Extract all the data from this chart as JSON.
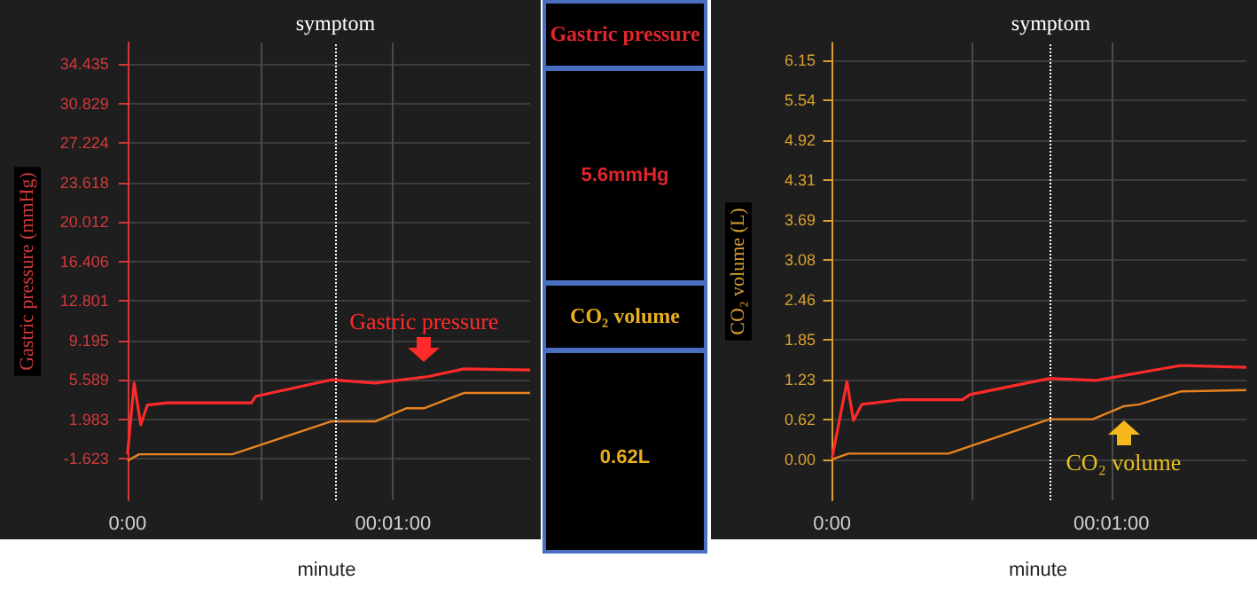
{
  "chart_data": [
    {
      "type": "line",
      "xlabel": "minute",
      "ylabel": "Gastric pressure (mmHg)",
      "grid": true,
      "xlim": [
        -1,
        91
      ],
      "xticks": [
        {
          "value": 0,
          "label": "0:00"
        },
        {
          "value": 30,
          "label": null
        },
        {
          "value": 60,
          "label": "00:01:00"
        }
      ],
      "ylim": [
        -5.4,
        36.4
      ],
      "yticks": [
        -1.623,
        1.983,
        5.589,
        9.195,
        12.801,
        16.406,
        20.012,
        23.618,
        27.224,
        30.829,
        34.435
      ],
      "ref_lines": [
        {
          "axis": "x",
          "value": 47,
          "label": "symptom",
          "color": "#ffffff",
          "line_style": "dotted"
        }
      ],
      "annotations": [
        {
          "text": "Gastric pressure",
          "x": 67,
          "y": 5.9
        }
      ],
      "series": [
        {
          "color": "#ff2a2a",
          "x": [
            0,
            1.5,
            3,
            4.5,
            9,
            28,
            29,
            46,
            56,
            68,
            76,
            91
          ],
          "values": [
            -1.2,
            5.3,
            1.5,
            3.3,
            3.5,
            3.5,
            4.1,
            5.6,
            5.3,
            5.9,
            6.6,
            6.5
          ]
        },
        {
          "color": "#e8831f",
          "x": [
            0,
            2.6,
            23.7,
            46,
            56,
            63,
            67,
            76,
            91
          ],
          "values": [
            -1.8,
            -1.2,
            -1.2,
            1.8,
            1.8,
            3.0,
            3.0,
            4.4,
            4.4
          ]
        }
      ]
    },
    {
      "type": "other",
      "annotations": [
        "Gastric pressure",
        "5.6mmHg",
        "CO₂ volume",
        "0.62L"
      ]
    },
    {
      "type": "line",
      "xlabel": "minute",
      "ylabel": "CO₂ volume (L)",
      "grid": true,
      "xlim": [
        -0.5,
        89
      ],
      "xticks": [
        {
          "value": 0,
          "label": "0:00"
        },
        {
          "value": 30,
          "label": null
        },
        {
          "value": 60,
          "label": "00:01:00"
        }
      ],
      "ylim": [
        -0.63,
        6.43
      ],
      "yticks": [
        {
          "value": 0,
          "label": "0.00"
        },
        0.62,
        1.23,
        1.85,
        2.46,
        3.08,
        3.69,
        4.31,
        4.92,
        5.54,
        6.15
      ],
      "ref_lines": [
        {
          "axis": "x",
          "value": 47,
          "label": "symptom",
          "color": "#ffffff",
          "line_style": "dotted"
        }
      ],
      "annotations": [
        {
          "text": "CO₂ volume",
          "x": 62.6,
          "y": 0.82
        }
      ],
      "series": [
        {
          "color": "#ff2a2a",
          "x": [
            0,
            3.2,
            4.6,
            6.4,
            14.5,
            28,
            29.6,
            46.7,
            56.8,
            67,
            75,
            89
          ],
          "values": [
            0.02,
            1.2,
            0.6,
            0.85,
            0.92,
            0.92,
            1.0,
            1.25,
            1.22,
            1.35,
            1.45,
            1.42
          ]
        },
        {
          "color": "#e8831f",
          "x": [
            0,
            3.5,
            25,
            46.7,
            56,
            62.6,
            66,
            75,
            89
          ],
          "values": [
            0,
            0.09,
            0.09,
            0.62,
            0.62,
            0.82,
            0.85,
            1.05,
            1.07
          ]
        }
      ]
    }
  ]
}
